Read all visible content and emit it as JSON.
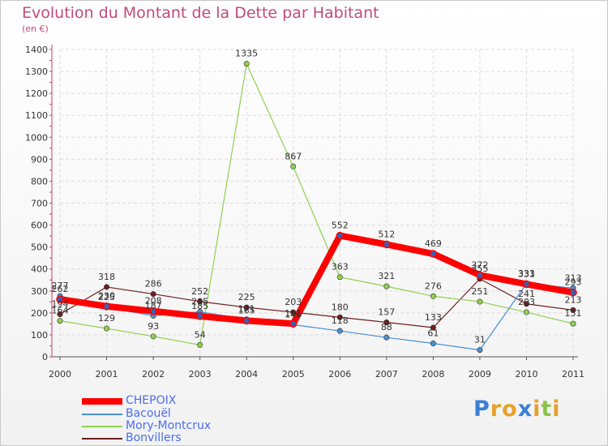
{
  "title": "Evolution du Montant de la Dette par Habitant",
  "subtitle": "(en €)",
  "chart_data": {
    "type": "line",
    "title": "Evolution du Montant de la Dette par Habitant",
    "ylabel": "(en €)",
    "xlabel": "",
    "x": [
      "2000",
      "2001",
      "2002",
      "2003",
      "2004",
      "2005",
      "2006",
      "2007",
      "2008",
      "2009",
      "2010",
      "2011"
    ],
    "ylim": [
      0,
      1400
    ],
    "yticks": [
      "0",
      "100",
      "200",
      "300",
      "400",
      "500",
      "600",
      "700",
      "800",
      "900",
      "1000",
      "1100",
      "1200",
      "1300",
      "1400"
    ],
    "legend": "bottom-left",
    "series": [
      {
        "name": "Bonvillers",
        "color": "#6e1e1e",
        "values": [
          194,
          318,
          286,
          252,
          225,
          203,
          180,
          157,
          133,
          355,
          241,
          213
        ]
      },
      {
        "name": "Mory-Montcrux",
        "color": "#8fd14f",
        "values": [
          164,
          129,
          93,
          54,
          1335,
          867,
          363,
          321,
          276,
          251,
          203,
          151
        ]
      },
      {
        "name": "Bacouël",
        "color": "#4a90d0",
        "values": [
          277,
          225,
          187,
          205,
          171,
          146,
          118,
          88,
          61,
          31,
          333,
          313
        ]
      },
      {
        "name": "CHEPOIX",
        "color": "#ff0000",
        "values": [
          262,
          230,
          208,
          185,
          165,
          151,
          552,
          512,
          469,
          372,
          331,
          293
        ]
      }
    ],
    "point_labels": {
      "Bonvillers": [
        "194",
        "318",
        "286",
        "252",
        "225",
        "203",
        "180",
        "157",
        "133",
        "355",
        "241",
        "213"
      ],
      "Mory-Montcrux": [
        "164",
        "129",
        "93",
        "54",
        "1335",
        "867",
        "363",
        "321",
        "276",
        "251",
        "203",
        "151"
      ],
      "Bacouël": [
        "277",
        "225",
        "187",
        "205",
        "171",
        "146",
        "118",
        "88",
        "61",
        "31",
        "333",
        "313"
      ],
      "CHEPOIX": [
        "262",
        "230",
        "208",
        "185",
        "165",
        "151",
        "552",
        "512",
        "469",
        "372",
        "331",
        "293"
      ]
    }
  },
  "legend_items": [
    {
      "name": "CHEPOIX",
      "color": "#ff0000"
    },
    {
      "name": "Bacouël",
      "color": "#4a90d0"
    },
    {
      "name": "Mory-Montcrux",
      "color": "#8fd14f"
    },
    {
      "name": "Bonvillers",
      "color": "#6e1e1e"
    }
  ],
  "logo": {
    "text": "Proxiti",
    "letters": [
      "P",
      "r",
      "o",
      "x",
      "i",
      "t",
      "i"
    ],
    "colors": [
      "#3a7fd5",
      "#e8a12a",
      "#e8a12a",
      "#3a7fd5",
      "#e8a12a",
      "#8bc34a",
      "#e8a12a"
    ]
  }
}
